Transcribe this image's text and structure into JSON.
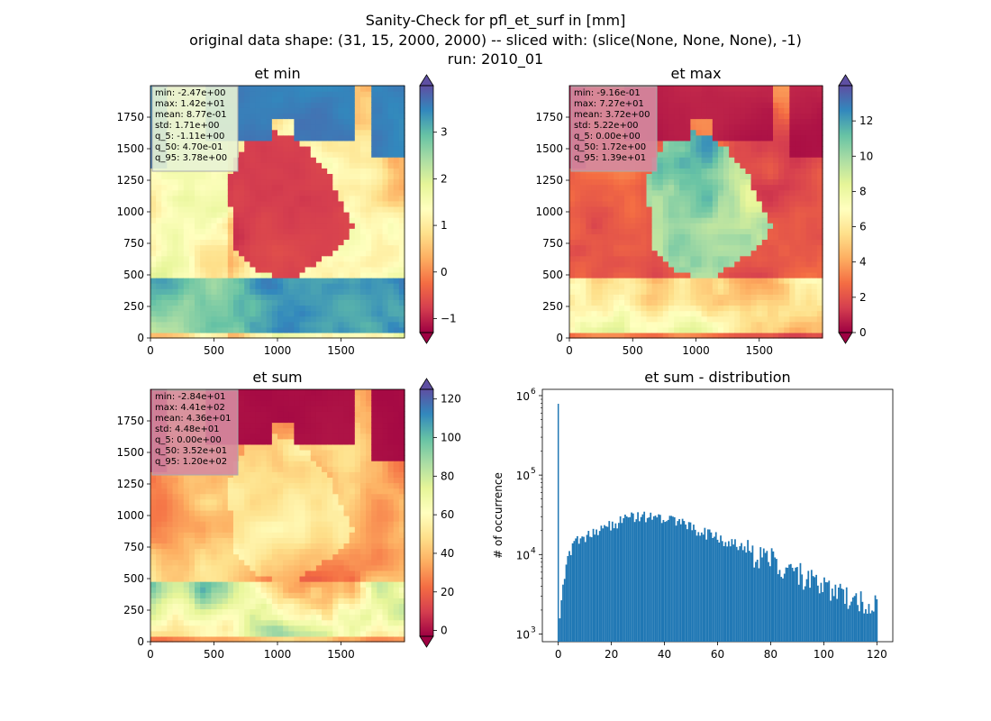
{
  "suptitle": {
    "line1": "Sanity-Check for pfl_et_surf in [mm]",
    "line2": "original data shape: (31, 15, 2000, 2000) -- sliced with: (slice(None, None, None), -1)",
    "line3": "run: 2010_01"
  },
  "colormap": {
    "name": "Spectral",
    "stops": [
      "#9e0142",
      "#d53e4f",
      "#f46d43",
      "#fdae61",
      "#fee08b",
      "#ffffbf",
      "#e6f598",
      "#abdda4",
      "#66c2a5",
      "#3288bd",
      "#5e4fa2"
    ],
    "hist_color": "#1f77b4"
  },
  "chart_data": [
    {
      "type": "heatmap",
      "title": "et min",
      "x_ticks": [
        "0",
        "500",
        "1000",
        "1500"
      ],
      "y_ticks": [
        "0",
        "250",
        "500",
        "750",
        "1000",
        "1250",
        "1500",
        "1750"
      ],
      "xlim": [
        0,
        2000
      ],
      "ylim": [
        0,
        2000
      ],
      "colorbar": {
        "min": -1.3,
        "max": 4.0,
        "ticks": [
          "−1",
          "0",
          "1",
          "2",
          "3"
        ],
        "tick_values": [
          -1,
          0,
          1,
          2,
          3
        ],
        "extend": "both"
      },
      "stats": [
        "min: -2.47e+00",
        "max: 1.42e+01",
        "mean: 8.77e-01",
        "std: 1.71e+00",
        "q_5: -1.11e+00",
        "q_50: 4.70e-01",
        "q_95: 3.78e+00"
      ],
      "stats_box_color": "#e8f3d4"
    },
    {
      "type": "heatmap",
      "title": "et max",
      "x_ticks": [
        "0",
        "500",
        "1000",
        "1500"
      ],
      "y_ticks": [
        "0",
        "250",
        "500",
        "750",
        "1000",
        "1250",
        "1500",
        "1750"
      ],
      "xlim": [
        0,
        2000
      ],
      "ylim": [
        0,
        2000
      ],
      "colorbar": {
        "min": 0,
        "max": 14,
        "ticks": [
          "0",
          "2",
          "4",
          "6",
          "8",
          "10",
          "12"
        ],
        "tick_values": [
          0,
          2,
          4,
          6,
          8,
          10,
          12
        ],
        "extend": "both"
      },
      "stats": [
        "min: -9.16e-01",
        "max: 7.27e+01",
        "mean: 3.72e+00",
        "std: 5.22e+00",
        "q_5: 0.00e+00",
        "q_50: 1.72e+00",
        "q_95: 1.39e+01"
      ],
      "stats_box_color": "#d58ba0"
    },
    {
      "type": "heatmap",
      "title": "et sum",
      "x_ticks": [
        "0",
        "500",
        "1000",
        "1500"
      ],
      "y_ticks": [
        "0",
        "250",
        "500",
        "750",
        "1000",
        "1250",
        "1500",
        "1750"
      ],
      "xlim": [
        0,
        2000
      ],
      "ylim": [
        0,
        2000
      ],
      "colorbar": {
        "min": -3,
        "max": 125,
        "ticks": [
          "0",
          "20",
          "40",
          "60",
          "80",
          "100",
          "120"
        ],
        "tick_values": [
          0,
          20,
          40,
          60,
          80,
          100,
          120
        ],
        "extend": "both"
      },
      "stats": [
        "min: -2.84e+01",
        "max: 4.41e+02",
        "mean: 4.36e+01",
        "std: 4.48e+01",
        "q_5: 0.00e+00",
        "q_50: 3.52e+01",
        "q_95: 1.20e+02"
      ],
      "stats_box_color": "#d58ba0"
    },
    {
      "type": "bar",
      "title": "et sum - distribution",
      "ylabel": "# of occurrence",
      "xlabel": "",
      "y_scale": "log",
      "xlim": [
        -6,
        126
      ],
      "ylim": [
        800,
        1200000
      ],
      "x_ticks": [
        "0",
        "20",
        "40",
        "60",
        "80",
        "100",
        "120"
      ],
      "x_tick_values": [
        0,
        20,
        40,
        60,
        80,
        100,
        120
      ],
      "y_tick_exponents": [
        "6",
        "5",
        "4",
        "3"
      ],
      "y_tick_values": [
        1000000,
        100000,
        10000,
        1000
      ],
      "bin_width": 0.6,
      "spike": {
        "x": 0,
        "count": 790000
      },
      "anchors": [
        [
          0.3,
          1500
        ],
        [
          1.5,
          4000
        ],
        [
          3,
          9000
        ],
        [
          6,
          15000
        ],
        [
          10,
          17000
        ],
        [
          15,
          20000
        ],
        [
          20,
          24000
        ],
        [
          25,
          28000
        ],
        [
          30,
          30000
        ],
        [
          35,
          31000
        ],
        [
          38,
          31000
        ],
        [
          40,
          28000
        ],
        [
          45,
          25000
        ],
        [
          50,
          22000
        ],
        [
          55,
          19000
        ],
        [
          60,
          16000
        ],
        [
          65,
          14000
        ],
        [
          70,
          12000
        ],
        [
          75,
          10000
        ],
        [
          80,
          9000
        ],
        [
          85,
          7500
        ],
        [
          90,
          6000
        ],
        [
          95,
          5000
        ],
        [
          100,
          4000
        ],
        [
          105,
          3500
        ],
        [
          110,
          3000
        ],
        [
          115,
          2700
        ],
        [
          120,
          2500
        ]
      ]
    }
  ]
}
